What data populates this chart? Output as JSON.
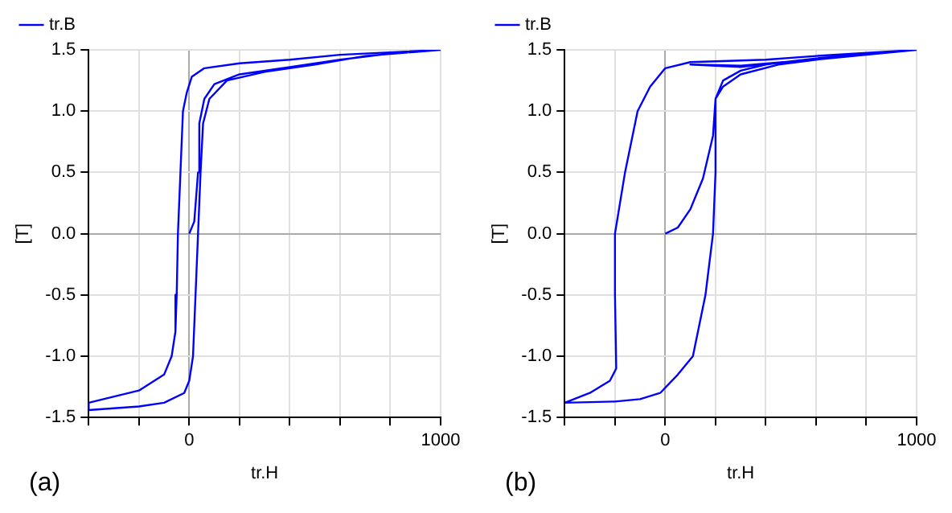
{
  "chart_data": [
    {
      "type": "line",
      "xlabel": "tr.H",
      "ylabel": "[T]",
      "annotations": [
        "(a)"
      ],
      "legend": "top left",
      "grid": true,
      "marker": "none",
      "line_style": "solid",
      "xlim": [
        -400,
        1000
      ],
      "ylim": [
        -1.5,
        1.5
      ],
      "xticks": [
        {
          "value": -400,
          "label": null
        },
        {
          "value": -200,
          "label": null
        },
        {
          "value": 0,
          "label": "0"
        },
        {
          "value": 200,
          "label": null
        },
        {
          "value": 400,
          "label": null
        },
        {
          "value": 600,
          "label": null
        },
        {
          "value": 800,
          "label": null
        },
        {
          "value": 1000,
          "label": "1000"
        }
      ],
      "yticks": [
        {
          "value": -1.5,
          "label": "-1.5"
        },
        {
          "value": -1,
          "label": "-1.0"
        },
        {
          "value": -0.5,
          "label": "-0.5"
        },
        {
          "value": 0,
          "label": "0.0"
        },
        {
          "value": 0.5,
          "label": "0.5"
        },
        {
          "value": 1,
          "label": "1.0"
        },
        {
          "value": 1.5,
          "label": "1.5"
        }
      ],
      "series": [
        {
          "name": "tr.B",
          "color": "#0000ff",
          "x": [
            0,
            20,
            35,
            40,
            60,
            100,
            200,
            400,
            600,
            800,
            1000,
            600,
            400,
            200,
            60,
            10,
            -10,
            -25,
            -35,
            -45,
            -50,
            -55,
            -70,
            -100,
            -200,
            -400,
            -400,
            -200,
            -100,
            -20,
            0,
            15,
            25,
            35,
            45,
            55,
            80,
            150,
            300,
            500,
            700,
            1000
          ],
          "values": [
            0,
            0.1,
            0.5,
            0.9,
            1.1,
            1.22,
            1.3,
            1.36,
            1.42,
            1.47,
            1.5,
            1.46,
            1.42,
            1.39,
            1.35,
            1.28,
            1.15,
            1,
            0.5,
            0,
            -0.5,
            -0.8,
            -1,
            -1.15,
            -1.28,
            -1.38,
            -1.44,
            -1.41,
            -1.38,
            -1.3,
            -1.2,
            -1,
            -0.5,
            0,
            0.5,
            0.9,
            1.1,
            1.25,
            1.32,
            1.38,
            1.45,
            1.5
          ]
        }
      ]
    },
    {
      "type": "line",
      "xlabel": "tr.H",
      "ylabel": "[T]",
      "annotations": [
        "(b)"
      ],
      "legend": "top left",
      "grid": true,
      "marker": "none",
      "line_style": "solid",
      "xlim": [
        -400,
        1000
      ],
      "ylim": [
        -1.5,
        1.5
      ],
      "xticks": [
        {
          "value": -400,
          "label": null
        },
        {
          "value": -200,
          "label": null
        },
        {
          "value": 0,
          "label": "0"
        },
        {
          "value": 200,
          "label": null
        },
        {
          "value": 400,
          "label": null
        },
        {
          "value": 600,
          "label": null
        },
        {
          "value": 800,
          "label": null
        },
        {
          "value": 1000,
          "label": "1000"
        }
      ],
      "yticks": [
        {
          "value": -1.5,
          "label": "-1.5"
        },
        {
          "value": -1,
          "label": "-1.0"
        },
        {
          "value": -0.5,
          "label": "-0.5"
        },
        {
          "value": 0,
          "label": "0.0"
        },
        {
          "value": 0.5,
          "label": "0.5"
        },
        {
          "value": 1,
          "label": "1.0"
        },
        {
          "value": 1.5,
          "label": "1.5"
        }
      ],
      "series": [
        {
          "name": "tr.B",
          "color": "#0000ff",
          "x": [
            0,
            50,
            100,
            150,
            190,
            200,
            230,
            300,
            450,
            600,
            800,
            1000,
            600,
            400,
            100,
            0,
            -60,
            -110,
            -160,
            -200,
            -200,
            -195,
            -220,
            -300,
            -400,
            -200,
            -100,
            -20,
            50,
            110,
            160,
            190,
            200,
            200,
            230,
            300,
            400,
            470,
            300,
            100,
            300,
            600,
            1000
          ],
          "values": [
            0,
            0.05,
            0.2,
            0.45,
            0.8,
            1.1,
            1.2,
            1.3,
            1.38,
            1.42,
            1.46,
            1.5,
            1.45,
            1.42,
            1.4,
            1.35,
            1.2,
            1,
            0.5,
            0,
            -0.5,
            -1.1,
            -1.2,
            -1.3,
            -1.38,
            -1.37,
            -1.35,
            -1.3,
            -1.15,
            -1,
            -0.5,
            0,
            0.5,
            1.1,
            1.25,
            1.33,
            1.38,
            1.4,
            1.37,
            1.38,
            1.36,
            1.43,
            1.5
          ]
        }
      ]
    }
  ]
}
